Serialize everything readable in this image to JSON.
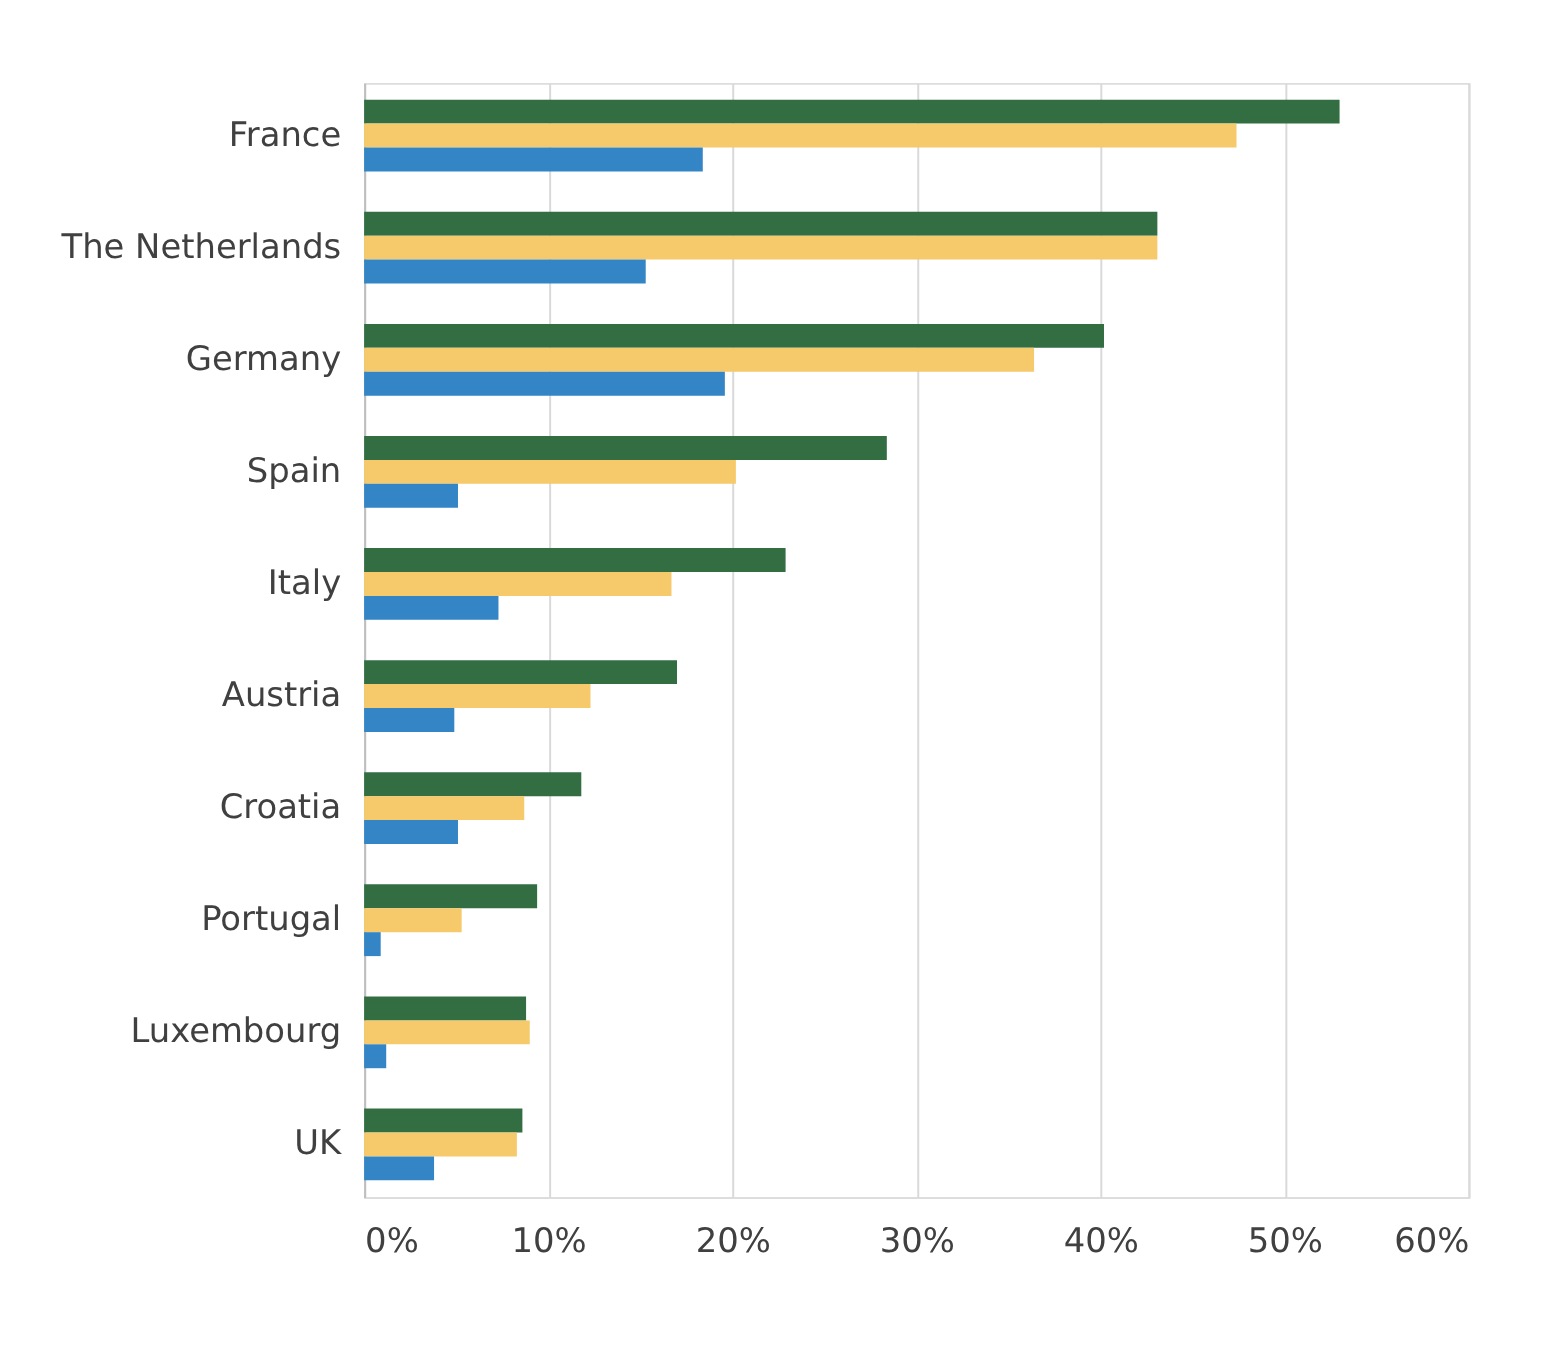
{
  "chart_data": {
    "type": "bar",
    "orientation": "horizontal",
    "categories": [
      "France",
      "The Netherlands",
      "Germany",
      "Spain",
      "Italy",
      "Austria",
      "Croatia",
      "Portugal",
      "Luxembourg",
      "UK"
    ],
    "series": [
      {
        "color": "#336e43",
        "values": [
          53.0,
          43.1,
          40.2,
          28.4,
          22.9,
          17.0,
          11.8,
          9.4,
          8.8,
          8.6
        ]
      },
      {
        "color": "#f6c96b",
        "values": [
          47.4,
          43.1,
          36.4,
          20.2,
          16.7,
          12.3,
          8.7,
          5.3,
          9.0,
          8.3
        ]
      },
      {
        "color": "#3385c6",
        "values": [
          18.4,
          15.3,
          19.6,
          5.1,
          7.3,
          4.9,
          5.1,
          0.9,
          1.2,
          3.8
        ]
      }
    ],
    "xlim": [
      0,
      60
    ],
    "xticks": [
      {
        "value": 0,
        "label": "0%"
      },
      {
        "value": 10,
        "label": "10%"
      },
      {
        "value": 20,
        "label": "20%"
      },
      {
        "value": 30,
        "label": "30%"
      },
      {
        "value": 40,
        "label": "40%"
      },
      {
        "value": 50,
        "label": "50%"
      },
      {
        "value": 60,
        "label": "60%"
      }
    ],
    "grid": "x",
    "legend": false
  }
}
